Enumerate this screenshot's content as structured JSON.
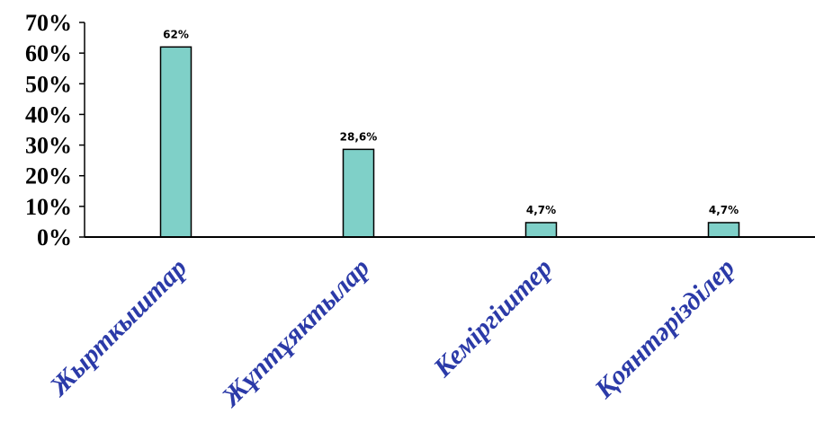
{
  "chart_data": {
    "type": "bar",
    "title": "",
    "xlabel": "",
    "ylabel": "",
    "categories": [
      "Жырткыштар",
      "Жұптұяктылар",
      "Кеміргіштер",
      "Қоянтәрізділер"
    ],
    "values": [
      62,
      28.6,
      4.7,
      4.7
    ],
    "data_labels": [
      "62%",
      "28,6%",
      "4,7%",
      "4,7%"
    ],
    "ylim": [
      0,
      70
    ],
    "y_ticks": [
      0,
      10,
      20,
      30,
      40,
      50,
      60,
      70
    ],
    "y_tick_labels": [
      "0%",
      "10%",
      "20%",
      "30%",
      "40%",
      "50%",
      "60%",
      "70%"
    ],
    "grid": false,
    "legend": "none",
    "colors": {
      "bar_fill": "#7fd0c8",
      "bar_stroke": "#000000",
      "axis": "#000000",
      "category_text": "#2b3aa8"
    }
  }
}
